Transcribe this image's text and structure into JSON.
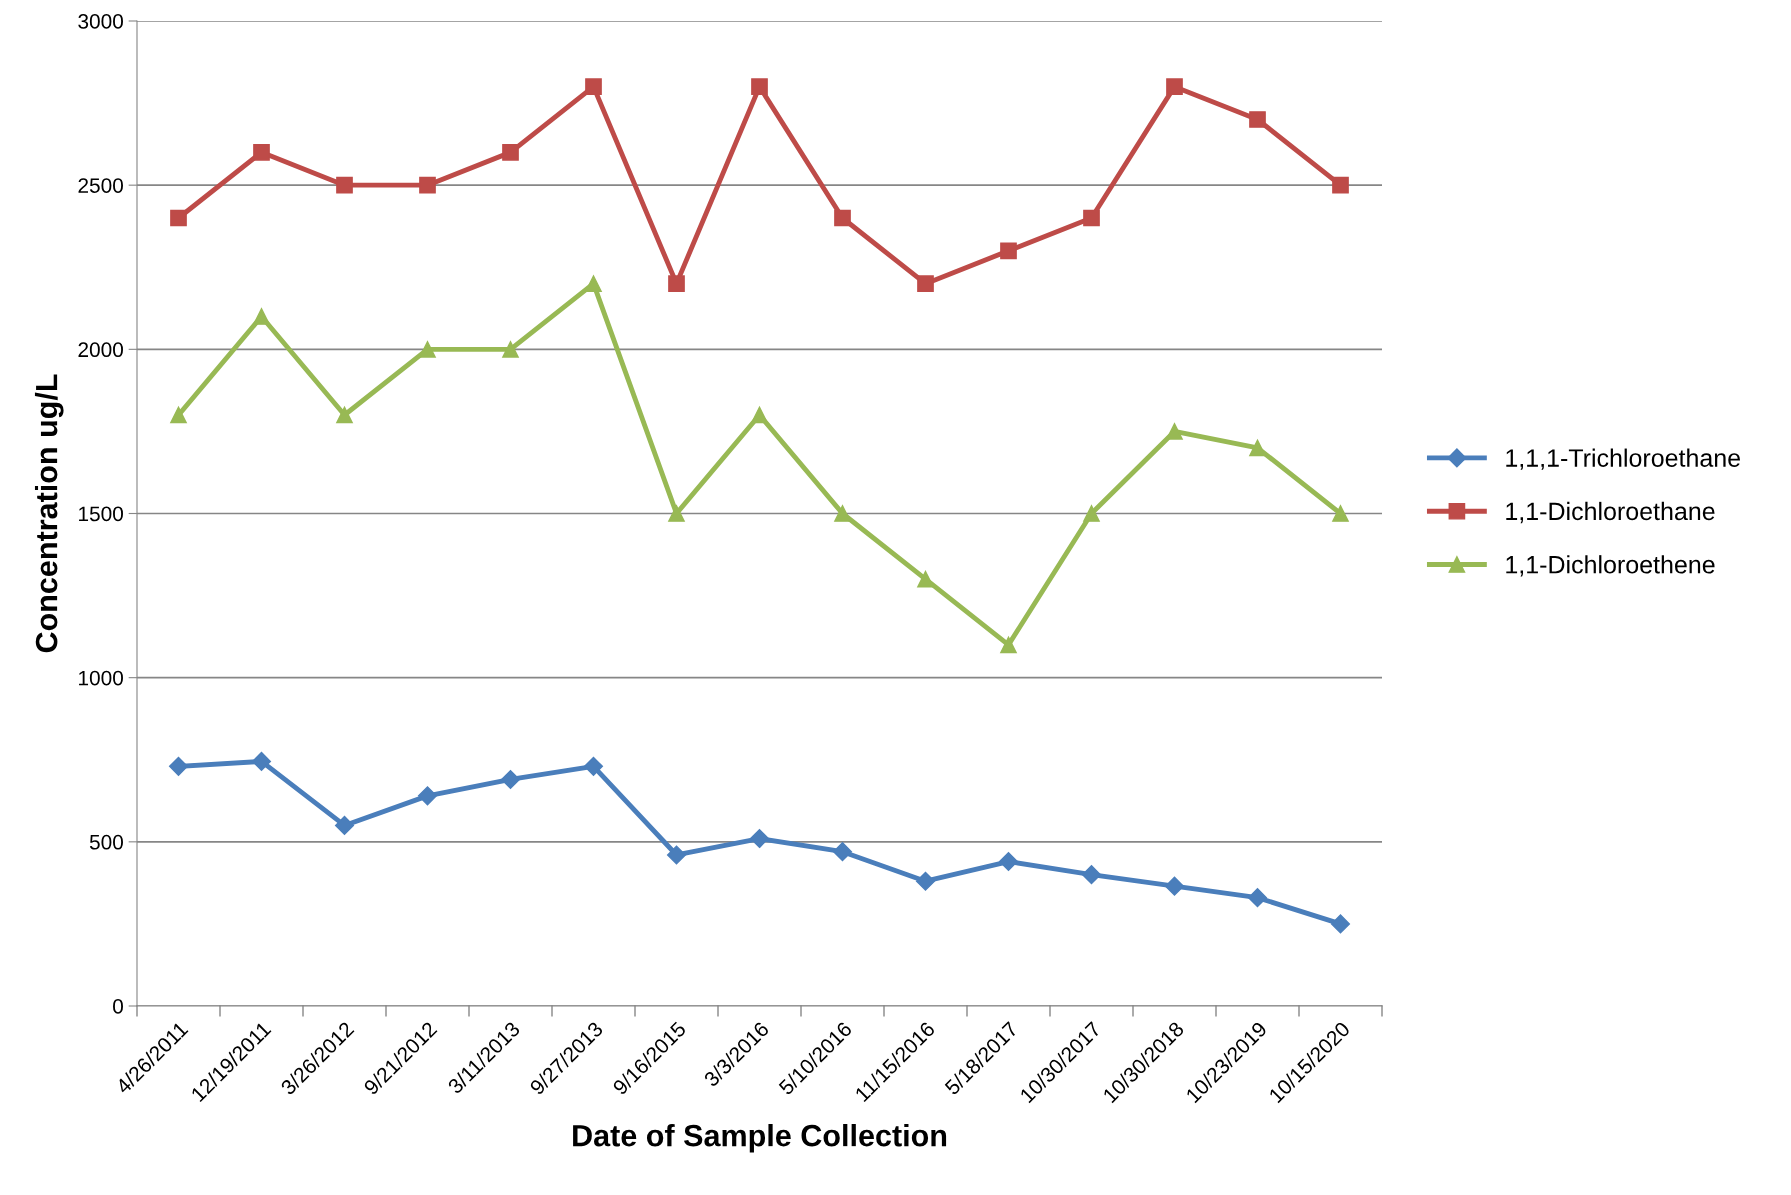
{
  "chart_data": {
    "type": "line",
    "xlabel": "Date of Sample Collection",
    "ylabel": "Concentration ug/L",
    "categories": [
      "4/26/2011",
      "12/19/2011",
      "3/26/2012",
      "9/21/2012",
      "3/11/2013",
      "9/27/2013",
      "9/16/2015",
      "3/3/2016",
      "5/10/2016",
      "11/15/2016",
      "5/18/2017",
      "10/30/2017",
      "10/30/2018",
      "10/23/2019",
      "10/15/2020"
    ],
    "series": [
      {
        "name": "1,1,1-Trichloroethane",
        "color": "#4a7ebb",
        "marker": "diamond",
        "values": [
          730,
          745,
          550,
          640,
          690,
          730,
          460,
          510,
          470,
          380,
          440,
          400,
          365,
          330,
          250
        ]
      },
      {
        "name": "1,1-Dichloroethane",
        "color": "#be4b48",
        "marker": "square",
        "values": [
          2400,
          2600,
          2500,
          2500,
          2600,
          2800,
          2200,
          2800,
          2400,
          2200,
          2300,
          2400,
          2800,
          2700,
          2500
        ]
      },
      {
        "name": "1,1-Dichloroethene",
        "color": "#98b954",
        "marker": "triangle",
        "values": [
          1800,
          2100,
          1800,
          2000,
          2000,
          2200,
          1500,
          1800,
          1500,
          1300,
          1100,
          1500,
          1750,
          1700,
          1500
        ]
      }
    ],
    "ylim": [
      0,
      3000
    ],
    "yticks": [
      0,
      500,
      1000,
      1500,
      2000,
      2500,
      3000
    ],
    "grid": "y",
    "legend": "right",
    "line_style": "solid"
  }
}
